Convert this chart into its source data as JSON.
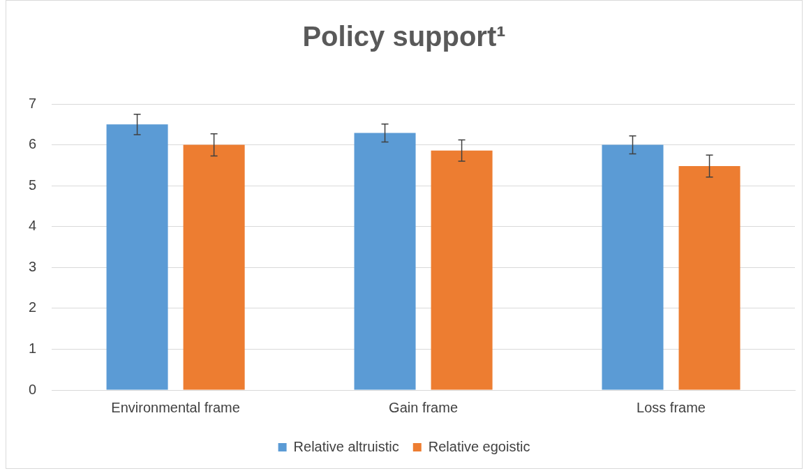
{
  "chart_data": {
    "type": "bar",
    "title": "Policy support¹",
    "categories": [
      "Environmental frame",
      "Gain frame",
      "Loss frame"
    ],
    "series": [
      {
        "name": "Relative altruistic",
        "color": "#5b9bd5",
        "values": [
          6.5,
          6.29,
          6.0
        ],
        "errors": [
          0.25,
          0.22,
          0.22
        ]
      },
      {
        "name": "Relative egoistic",
        "color": "#ed7d31",
        "values": [
          6.0,
          5.86,
          5.48
        ],
        "errors": [
          0.27,
          0.26,
          0.27
        ]
      }
    ],
    "ylim": [
      0,
      7
    ],
    "yticks": [
      0,
      1,
      2,
      3,
      4,
      5,
      6,
      7
    ],
    "grid": "y",
    "legend": "bottom"
  }
}
